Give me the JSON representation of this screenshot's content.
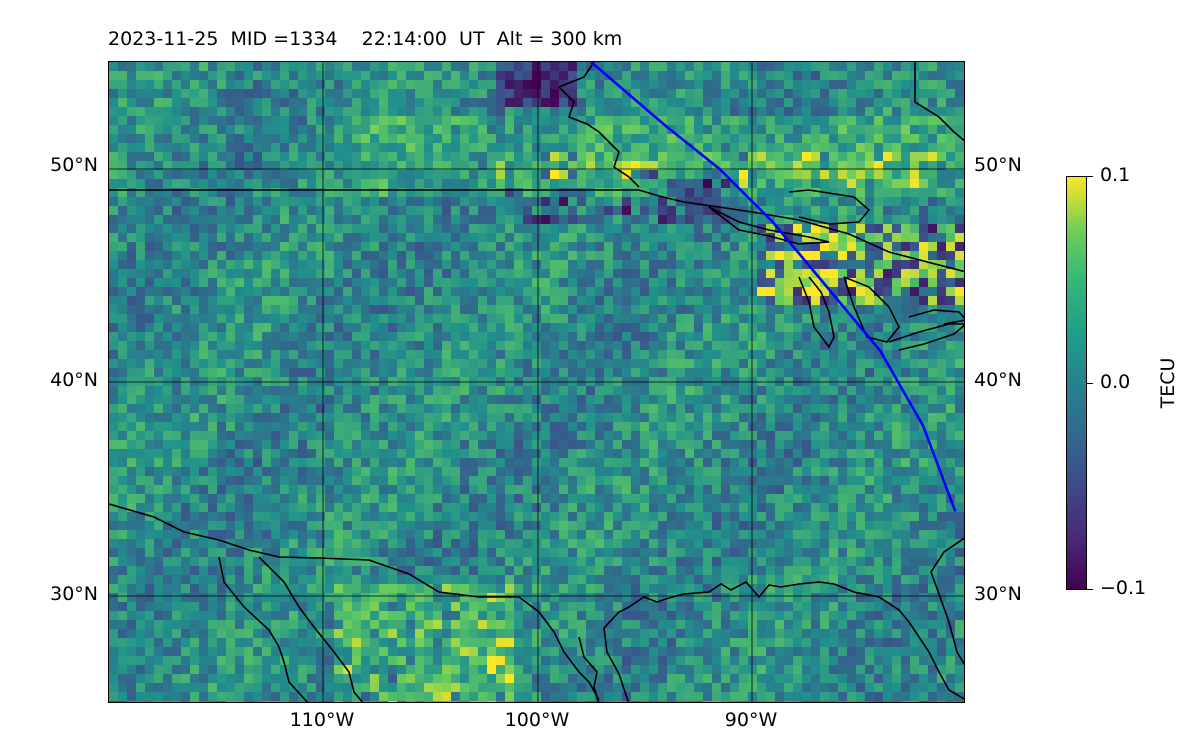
{
  "title": {
    "date": "2023-11-25",
    "mid": "MID =1334",
    "time": "22:14:00  UT",
    "alt": "Alt = 300 km"
  },
  "map": {
    "lat_ticks": [
      "50°N",
      "40°N",
      "30°N"
    ],
    "lon_ticks": [
      "110°W",
      "100°W",
      "90°W"
    ],
    "lon_range": [
      -120,
      -80
    ],
    "lat_range": [
      25,
      55
    ],
    "features": [
      "coastlines",
      "country borders",
      "gridlines",
      "satellite ground track"
    ],
    "track_color": "#0000ff",
    "track_points": [
      [
        -97.5,
        55
      ],
      [
        -94,
        52
      ],
      [
        -91.5,
        50
      ],
      [
        -89,
        47.5
      ],
      [
        -86.5,
        44.5
      ],
      [
        -84,
        41.5
      ],
      [
        -82,
        38
      ],
      [
        -80.5,
        34
      ]
    ]
  },
  "colorbar": {
    "label": "TECU",
    "ticks": [
      "0.1",
      "0.0",
      "−0.1"
    ],
    "min": -0.1,
    "max": 0.1,
    "colormap": "viridis"
  }
}
